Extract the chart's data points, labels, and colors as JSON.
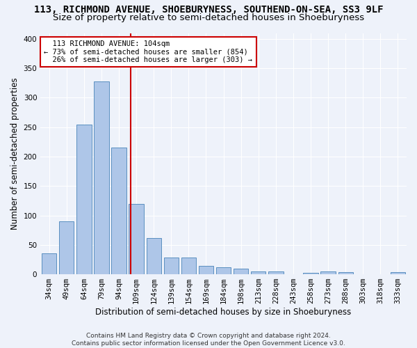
{
  "title": "113, RICHMOND AVENUE, SHOEBURYNESS, SOUTHEND-ON-SEA, SS3 9LF",
  "subtitle": "Size of property relative to semi-detached houses in Shoeburyness",
  "xlabel": "Distribution of semi-detached houses by size in Shoeburyness",
  "ylabel": "Number of semi-detached properties",
  "footer_line1": "Contains HM Land Registry data © Crown copyright and database right 2024.",
  "footer_line2": "Contains public sector information licensed under the Open Government Licence v3.0.",
  "categories": [
    "34sqm",
    "49sqm",
    "64sqm",
    "79sqm",
    "94sqm",
    "109sqm",
    "124sqm",
    "139sqm",
    "154sqm",
    "169sqm",
    "184sqm",
    "198sqm",
    "213sqm",
    "228sqm",
    "243sqm",
    "258sqm",
    "273sqm",
    "288sqm",
    "303sqm",
    "318sqm",
    "333sqm"
  ],
  "values": [
    35,
    90,
    254,
    328,
    215,
    120,
    62,
    29,
    29,
    14,
    12,
    10,
    5,
    5,
    0,
    3,
    5,
    4,
    0,
    0,
    4
  ],
  "bar_color": "#aec6e8",
  "bar_edge_color": "#5a8fc0",
  "property_label": "113 RICHMOND AVENUE: 104sqm",
  "pct_smaller": 73,
  "n_smaller": 854,
  "pct_larger": 26,
  "n_larger": 303,
  "vline_x_index": 4.67,
  "annotation_box_color": "#cc0000",
  "ylim": [
    0,
    410
  ],
  "yticks": [
    0,
    50,
    100,
    150,
    200,
    250,
    300,
    350,
    400
  ],
  "background_color": "#eef2fa",
  "grid_color": "#ffffff",
  "title_fontsize": 10,
  "subtitle_fontsize": 9.5,
  "axis_label_fontsize": 8.5,
  "tick_fontsize": 7.5,
  "annotation_fontsize": 7.5,
  "footer_fontsize": 6.5
}
